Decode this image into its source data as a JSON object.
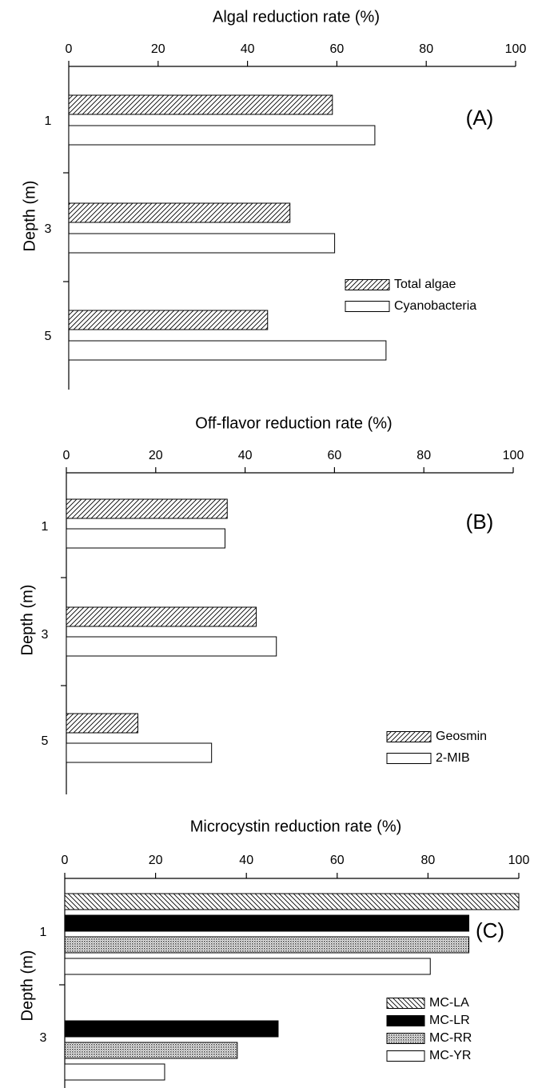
{
  "chart_data": [
    {
      "type": "bar",
      "orientation": "horizontal",
      "title": "Algal reduction rate (%)",
      "ylabel": "Depth (m)",
      "panel_label": "(A)",
      "xlim": [
        0,
        100
      ],
      "xticks": [
        "0",
        "20",
        "40",
        "60",
        "80",
        "100"
      ],
      "categories": [
        "1",
        "3",
        "5"
      ],
      "series": [
        {
          "name": "Total algae",
          "pattern": "hatch-fwd",
          "values": [
            59,
            49.5,
            44.5
          ]
        },
        {
          "name": "Cyanobacteria",
          "pattern": "white",
          "values": [
            68.5,
            59.5,
            71
          ]
        }
      ],
      "legend": "center-right"
    },
    {
      "type": "bar",
      "orientation": "horizontal",
      "title": "Off-flavor reduction rate (%)",
      "ylabel": "Depth (m)",
      "panel_label": "(B)",
      "xlim": [
        0,
        100
      ],
      "xticks": [
        "0",
        "20",
        "40",
        "60",
        "80",
        "100"
      ],
      "categories": [
        "1",
        "3",
        "5"
      ],
      "series": [
        {
          "name": "Geosmin",
          "pattern": "hatch-fwd",
          "values": [
            36,
            42.5,
            16
          ]
        },
        {
          "name": "2-MIB",
          "pattern": "white",
          "values": [
            35.5,
            47,
            32.5
          ]
        }
      ],
      "legend": "bottom-right"
    },
    {
      "type": "bar",
      "orientation": "horizontal",
      "title": "Microcystin reduction rate (%)",
      "ylabel": "Depth (m)",
      "panel_label": "(C)",
      "xlim": [
        0,
        100
      ],
      "xticks": [
        "0",
        "20",
        "40",
        "60",
        "80",
        "100"
      ],
      "categories": [
        "1",
        "3"
      ],
      "series": [
        {
          "name": "MC-LA",
          "pattern": "hatch-back",
          "values": [
            100,
            0
          ]
        },
        {
          "name": "MC-LR",
          "pattern": "black",
          "values": [
            89,
            47
          ]
        },
        {
          "name": "MC-RR",
          "pattern": "dots",
          "values": [
            89,
            38
          ]
        },
        {
          "name": "MC-YR",
          "pattern": "white",
          "values": [
            80.5,
            22
          ]
        }
      ],
      "legend": "bottom-right"
    }
  ]
}
